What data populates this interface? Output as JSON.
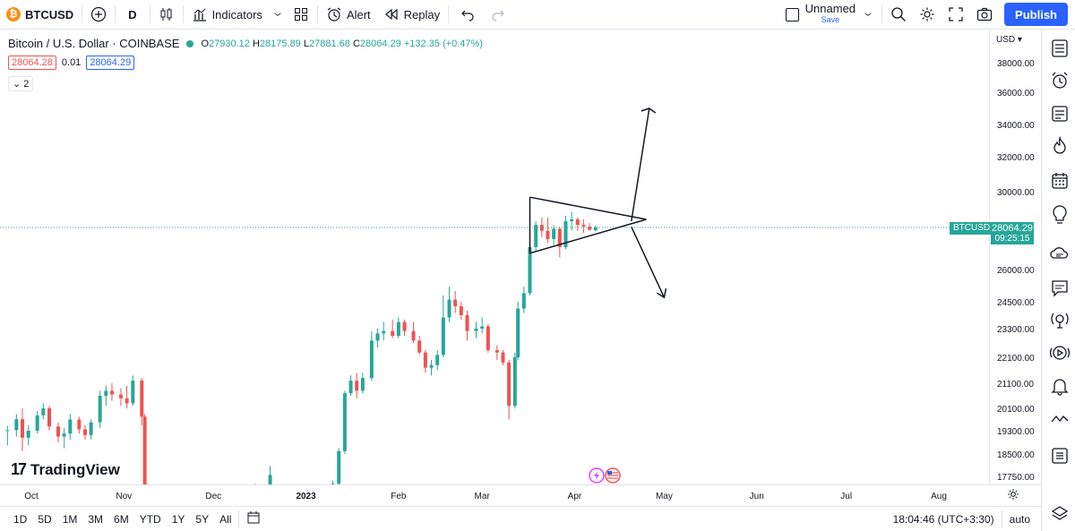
{
  "toolbar": {
    "symbol": "BTCUSD",
    "symbol_badge": "₿",
    "interval": "D",
    "indicators_label": "Indicators",
    "alert_label": "Alert",
    "replay_label": "Replay",
    "layout_name": "Unnamed",
    "layout_save": "Save",
    "publish_label": "Publish"
  },
  "legend": {
    "title": "Bitcoin / U.S. Dollar · COINBASE",
    "open_key": "O",
    "open": "27930.12",
    "high_key": "H",
    "high": "28175.89",
    "low_key": "L",
    "low": "27881.68",
    "close_key": "C",
    "close": "28064.29",
    "change": "+132.35 (+0.47%)",
    "bid": "28064.28",
    "spread": "0.01",
    "ask": "28064.29",
    "indicators_count": "2"
  },
  "price_axis": {
    "currency": "USD",
    "ticks": [
      "38000.00",
      "36000.00",
      "34000.00",
      "32000.00",
      "30000.00",
      "26000.00",
      "24500.00",
      "23300.00",
      "22100.00",
      "21100.00",
      "20100.00",
      "19300.00",
      "18500.00",
      "17750.00"
    ],
    "last_symbol": "BTCUSD",
    "last_price": "28064.29",
    "countdown": "09:25:15"
  },
  "time_axis": {
    "ticks": [
      "Oct",
      "Nov",
      "Dec",
      "2023",
      "Feb",
      "Mar",
      "Apr",
      "May",
      "Jun",
      "Jul",
      "Aug"
    ]
  },
  "bottom_bar": {
    "ranges": [
      "1D",
      "5D",
      "1M",
      "3M",
      "6M",
      "YTD",
      "1Y",
      "5Y",
      "All"
    ],
    "clock": "18:04:46 (UTC+3:30)",
    "scale_mode": "auto"
  },
  "watermark": {
    "logo_text": "17",
    "brand": "TradingView"
  },
  "colors": {
    "up": "#26a69a",
    "down": "#ef5350",
    "accent": "#2962ff"
  },
  "chart_data": {
    "type": "candlestick",
    "ylim": [
      17300,
      39000
    ],
    "xlim": [
      "2022-09-23",
      "2023-08-20"
    ],
    "candles": [
      {
        "d": "2022-09-23",
        "o": 19290,
        "h": 19480,
        "l": 18800,
        "c": 19320
      },
      {
        "d": "2022-09-26",
        "o": 19320,
        "h": 19900,
        "l": 19100,
        "c": 19710
      },
      {
        "d": "2022-09-28",
        "o": 19710,
        "h": 20100,
        "l": 18600,
        "c": 19060
      },
      {
        "d": "2022-09-30",
        "o": 19060,
        "h": 19500,
        "l": 18800,
        "c": 19300
      },
      {
        "d": "2022-10-03",
        "o": 19300,
        "h": 20000,
        "l": 19200,
        "c": 19850
      },
      {
        "d": "2022-10-05",
        "o": 19850,
        "h": 20300,
        "l": 19700,
        "c": 20100
      },
      {
        "d": "2022-10-07",
        "o": 20100,
        "h": 20200,
        "l": 19300,
        "c": 19450
      },
      {
        "d": "2022-10-10",
        "o": 19450,
        "h": 19600,
        "l": 18900,
        "c": 19100
      },
      {
        "d": "2022-10-12",
        "o": 19100,
        "h": 19400,
        "l": 18700,
        "c": 19200
      },
      {
        "d": "2022-10-14",
        "o": 19200,
        "h": 19900,
        "l": 19000,
        "c": 19700
      },
      {
        "d": "2022-10-17",
        "o": 19700,
        "h": 19800,
        "l": 19200,
        "c": 19350
      },
      {
        "d": "2022-10-19",
        "o": 19350,
        "h": 19500,
        "l": 19000,
        "c": 19150
      },
      {
        "d": "2022-10-21",
        "o": 19150,
        "h": 19700,
        "l": 19000,
        "c": 19600
      },
      {
        "d": "2022-10-24",
        "o": 19600,
        "h": 20800,
        "l": 19400,
        "c": 20600
      },
      {
        "d": "2022-10-26",
        "o": 20600,
        "h": 21000,
        "l": 20200,
        "c": 20800
      },
      {
        "d": "2022-10-28",
        "o": 20800,
        "h": 21100,
        "l": 20400,
        "c": 20650
      },
      {
        "d": "2022-10-31",
        "o": 20650,
        "h": 20900,
        "l": 20200,
        "c": 20500
      },
      {
        "d": "2022-11-02",
        "o": 20500,
        "h": 21000,
        "l": 20100,
        "c": 20300
      },
      {
        "d": "2022-11-04",
        "o": 20300,
        "h": 21400,
        "l": 20200,
        "c": 21200
      },
      {
        "d": "2022-11-07",
        "o": 21200,
        "h": 21300,
        "l": 19500,
        "c": 19800
      },
      {
        "d": "2022-11-08",
        "o": 19800,
        "h": 19900,
        "l": 17400,
        "c": 17400
      },
      {
        "d": "2022-11-09",
        "o": 17400,
        "h": 17500,
        "l": 17300,
        "c": 17300
      },
      {
        "d": "2022-12-15",
        "o": 17300,
        "h": 17500,
        "l": 17300,
        "c": 17350
      },
      {
        "d": "2022-12-20",
        "o": 17350,
        "h": 18100,
        "l": 17300,
        "c": 17800
      },
      {
        "d": "2023-01-10",
        "o": 17300,
        "h": 17600,
        "l": 17300,
        "c": 17500
      },
      {
        "d": "2023-01-12",
        "o": 17500,
        "h": 18700,
        "l": 17400,
        "c": 18600
      },
      {
        "d": "2023-01-14",
        "o": 18600,
        "h": 20800,
        "l": 18500,
        "c": 20700
      },
      {
        "d": "2023-01-16",
        "o": 20700,
        "h": 21400,
        "l": 20600,
        "c": 21200
      },
      {
        "d": "2023-01-18",
        "o": 21200,
        "h": 21500,
        "l": 20500,
        "c": 20800
      },
      {
        "d": "2023-01-20",
        "o": 20800,
        "h": 21500,
        "l": 20700,
        "c": 21300
      },
      {
        "d": "2023-01-23",
        "o": 21300,
        "h": 23200,
        "l": 21200,
        "c": 22800
      },
      {
        "d": "2023-01-25",
        "o": 22800,
        "h": 23300,
        "l": 22500,
        "c": 23100
      },
      {
        "d": "2023-01-27",
        "o": 23100,
        "h": 23600,
        "l": 22800,
        "c": 23200
      },
      {
        "d": "2023-01-30",
        "o": 23200,
        "h": 23700,
        "l": 22900,
        "c": 23000
      },
      {
        "d": "2023-02-01",
        "o": 23000,
        "h": 23800,
        "l": 22900,
        "c": 23600
      },
      {
        "d": "2023-02-03",
        "o": 23600,
        "h": 23700,
        "l": 23000,
        "c": 23200
      },
      {
        "d": "2023-02-06",
        "o": 23200,
        "h": 23600,
        "l": 22700,
        "c": 22800
      },
      {
        "d": "2023-02-08",
        "o": 22800,
        "h": 23000,
        "l": 22200,
        "c": 22300
      },
      {
        "d": "2023-02-10",
        "o": 22300,
        "h": 22400,
        "l": 21500,
        "c": 21700
      },
      {
        "d": "2023-02-12",
        "o": 21700,
        "h": 22000,
        "l": 21400,
        "c": 21800
      },
      {
        "d": "2023-02-14",
        "o": 21800,
        "h": 22400,
        "l": 21600,
        "c": 22200
      },
      {
        "d": "2023-02-16",
        "o": 22200,
        "h": 24800,
        "l": 22100,
        "c": 23800
      },
      {
        "d": "2023-02-18",
        "o": 23800,
        "h": 25200,
        "l": 23600,
        "c": 24600
      },
      {
        "d": "2023-02-20",
        "o": 24600,
        "h": 25000,
        "l": 24000,
        "c": 24300
      },
      {
        "d": "2023-02-22",
        "o": 24300,
        "h": 24500,
        "l": 23700,
        "c": 23900
      },
      {
        "d": "2023-02-24",
        "o": 23900,
        "h": 24100,
        "l": 22800,
        "c": 23200
      },
      {
        "d": "2023-02-27",
        "o": 23200,
        "h": 23600,
        "l": 22900,
        "c": 23300
      },
      {
        "d": "2023-03-01",
        "o": 23300,
        "h": 23800,
        "l": 23100,
        "c": 23400
      },
      {
        "d": "2023-03-03",
        "o": 23400,
        "h": 23500,
        "l": 22300,
        "c": 22400
      },
      {
        "d": "2023-03-06",
        "o": 22400,
        "h": 22600,
        "l": 22000,
        "c": 22300
      },
      {
        "d": "2023-03-08",
        "o": 22300,
        "h": 22400,
        "l": 21800,
        "c": 21900
      },
      {
        "d": "2023-03-10",
        "o": 21900,
        "h": 22000,
        "l": 19700,
        "c": 20200
      },
      {
        "d": "2023-03-12",
        "o": 20200,
        "h": 22300,
        "l": 20100,
        "c": 22100
      },
      {
        "d": "2023-03-13",
        "o": 22100,
        "h": 24500,
        "l": 22000,
        "c": 24200
      },
      {
        "d": "2023-03-15",
        "o": 24200,
        "h": 25200,
        "l": 24000,
        "c": 24900
      },
      {
        "d": "2023-03-17",
        "o": 24900,
        "h": 27300,
        "l": 24800,
        "c": 27100
      },
      {
        "d": "2023-03-19",
        "o": 27100,
        "h": 28400,
        "l": 26900,
        "c": 28200
      },
      {
        "d": "2023-03-21",
        "o": 28200,
        "h": 28600,
        "l": 27600,
        "c": 27900
      },
      {
        "d": "2023-03-23",
        "o": 27900,
        "h": 28600,
        "l": 27300,
        "c": 27500
      },
      {
        "d": "2023-03-25",
        "o": 27500,
        "h": 28200,
        "l": 27200,
        "c": 28000
      },
      {
        "d": "2023-03-27",
        "o": 28000,
        "h": 28100,
        "l": 26600,
        "c": 27100
      },
      {
        "d": "2023-03-29",
        "o": 27100,
        "h": 28700,
        "l": 27000,
        "c": 28400
      },
      {
        "d": "2023-03-31",
        "o": 28400,
        "h": 28900,
        "l": 27900,
        "c": 28500
      },
      {
        "d": "2023-04-02",
        "o": 28500,
        "h": 28600,
        "l": 27900,
        "c": 28200
      },
      {
        "d": "2023-04-04",
        "o": 28200,
        "h": 28500,
        "l": 27800,
        "c": 28100
      },
      {
        "d": "2023-04-06",
        "o": 28100,
        "h": 28300,
        "l": 27900,
        "c": 27950
      },
      {
        "d": "2023-04-08",
        "o": 27930,
        "h": 28180,
        "l": 27880,
        "c": 28064
      }
    ],
    "annotations": {
      "type": "symmetrical triangle with breakout arrows",
      "upside_target": 35000,
      "downside_target": 24700
    }
  }
}
